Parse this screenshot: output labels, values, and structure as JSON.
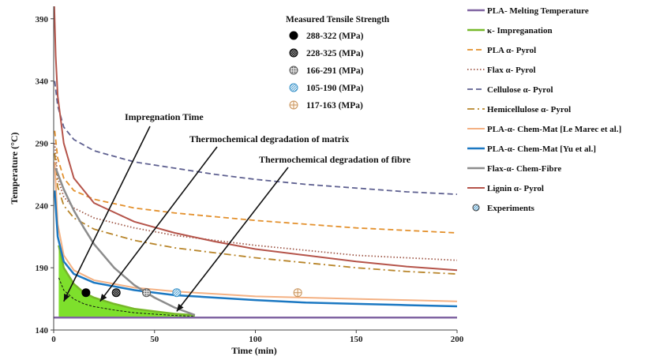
{
  "chart_data": {
    "type": "line",
    "xlabel": "Time (min)",
    "ylabel": "Temperature (°C)",
    "xlim": [
      0,
      200
    ],
    "ylim": [
      140,
      400
    ],
    "x_ticks": [
      0,
      50,
      100,
      150,
      200
    ],
    "y_ticks": [
      140,
      190,
      240,
      290,
      340,
      390
    ],
    "grid": false,
    "legend_position": "right",
    "series": [
      {
        "name": "PLA- Melting Temperature",
        "color": "#8064a2",
        "style": "solid",
        "width": 2.5,
        "points": [
          [
            0,
            150
          ],
          [
            200,
            150
          ]
        ]
      },
      {
        "name": "κ- Impreganation",
        "color": "#77b82a",
        "style": "solid",
        "width": 2.5,
        "points": [
          [
            2.5,
            208
          ],
          [
            5,
            190
          ],
          [
            10,
            177
          ],
          [
            15,
            170
          ],
          [
            20,
            166
          ],
          [
            30,
            161
          ],
          [
            40,
            157
          ],
          [
            50,
            155
          ],
          [
            60,
            153
          ],
          [
            70,
            152
          ]
        ]
      },
      {
        "name": "PLA α- Pyrol",
        "color": "#e3902c",
        "style": "dashed",
        "width": 1.8,
        "points": [
          [
            0.5,
            300
          ],
          [
            2,
            278
          ],
          [
            5,
            262
          ],
          [
            10,
            252
          ],
          [
            20,
            245
          ],
          [
            40,
            238
          ],
          [
            60,
            234
          ],
          [
            80,
            231
          ],
          [
            100,
            228
          ],
          [
            125,
            225
          ],
          [
            150,
            222
          ],
          [
            175,
            220
          ],
          [
            200,
            218
          ]
        ]
      },
      {
        "name": "Flax α- Pyrol",
        "color": "#a05a4a",
        "style": "dotted",
        "width": 1.8,
        "points": [
          [
            0.5,
            290
          ],
          [
            2,
            262
          ],
          [
            5,
            247
          ],
          [
            10,
            238
          ],
          [
            20,
            230
          ],
          [
            40,
            222
          ],
          [
            60,
            216
          ],
          [
            80,
            212
          ],
          [
            100,
            208
          ],
          [
            125,
            204
          ],
          [
            150,
            200
          ],
          [
            175,
            198
          ],
          [
            200,
            196
          ]
        ]
      },
      {
        "name": "Cellulose α- Pyrol",
        "color": "#5e6090",
        "style": "dashed",
        "width": 1.8,
        "points": [
          [
            0.5,
            340
          ],
          [
            2,
            320
          ],
          [
            5,
            303
          ],
          [
            10,
            293
          ],
          [
            20,
            284
          ],
          [
            40,
            275
          ],
          [
            60,
            270
          ],
          [
            80,
            265
          ],
          [
            100,
            261
          ],
          [
            125,
            257
          ],
          [
            150,
            254
          ],
          [
            175,
            251
          ],
          [
            200,
            249
          ]
        ]
      },
      {
        "name": "Hemicellulose α- Pyrol",
        "color": "#b8852a",
        "style": "dashdot",
        "width": 1.8,
        "points": [
          [
            0.5,
            282
          ],
          [
            2,
            255
          ],
          [
            5,
            240
          ],
          [
            10,
            230
          ],
          [
            20,
            221
          ],
          [
            40,
            212
          ],
          [
            60,
            206
          ],
          [
            80,
            202
          ],
          [
            100,
            198
          ],
          [
            125,
            194
          ],
          [
            150,
            190
          ],
          [
            175,
            187
          ],
          [
            200,
            185
          ]
        ]
      },
      {
        "name": "PLA-α- Chem-Mat [Le Marec et al.]",
        "color": "#f4b183",
        "style": "solid",
        "width": 2,
        "points": [
          [
            0.5,
            275
          ],
          [
            2,
            225
          ],
          [
            5,
            200
          ],
          [
            10,
            188
          ],
          [
            20,
            180
          ],
          [
            40,
            174
          ],
          [
            60,
            171
          ],
          [
            80,
            169
          ],
          [
            100,
            167
          ],
          [
            125,
            166
          ],
          [
            150,
            165
          ],
          [
            175,
            164
          ],
          [
            200,
            163
          ]
        ]
      },
      {
        "name": "PLA-α- Chem-Mat [Yu et al.]",
        "color": "#1b78c2",
        "style": "solid",
        "width": 2.5,
        "points": [
          [
            0.5,
            252
          ],
          [
            2,
            215
          ],
          [
            5,
            195
          ],
          [
            10,
            185
          ],
          [
            20,
            178
          ],
          [
            40,
            172
          ],
          [
            60,
            168
          ],
          [
            80,
            166
          ],
          [
            100,
            164
          ],
          [
            125,
            162
          ],
          [
            150,
            161
          ],
          [
            175,
            160
          ],
          [
            200,
            159
          ]
        ]
      },
      {
        "name": "Flax-α- Chem-Fibre",
        "color": "#8c8c8c",
        "style": "solid",
        "width": 2.5,
        "points": [
          [
            1,
            270
          ],
          [
            5,
            253
          ],
          [
            10,
            236
          ],
          [
            15,
            222
          ],
          [
            20,
            209
          ],
          [
            30,
            190
          ],
          [
            40,
            176
          ],
          [
            50,
            166
          ],
          [
            60,
            158
          ],
          [
            70,
            152
          ]
        ]
      },
      {
        "name": "Lignin α- Pyrol",
        "color": "#b5544a",
        "style": "solid",
        "width": 2,
        "points": [
          [
            0.3,
            400
          ],
          [
            1,
            360
          ],
          [
            2,
            328
          ],
          [
            5,
            290
          ],
          [
            10,
            262
          ],
          [
            20,
            242
          ],
          [
            40,
            227
          ],
          [
            60,
            218
          ],
          [
            80,
            211
          ],
          [
            100,
            205
          ],
          [
            125,
            200
          ],
          [
            150,
            195
          ],
          [
            175,
            191
          ],
          [
            200,
            188
          ]
        ]
      }
    ],
    "experiments": {
      "legend_label": "Experiments",
      "points": [
        {
          "x": 16,
          "y": 170,
          "range": "288-322"
        },
        {
          "x": 31,
          "y": 170,
          "range": "228-325"
        },
        {
          "x": 46,
          "y": 170,
          "range": "166-291"
        },
        {
          "x": 61,
          "y": 170,
          "range": "105-190"
        },
        {
          "x": 121,
          "y": 170,
          "range": "117-163"
        }
      ]
    },
    "measured_legend": {
      "title": "Measured  Tensile Strength",
      "items": [
        {
          "label": "288-322  (MPa)",
          "style": "solid-black"
        },
        {
          "label": "228-325  (MPa)",
          "style": "cross-black"
        },
        {
          "label": "166-291  (MPa)",
          "style": "gray-dots"
        },
        {
          "label": "105-190  (MPa)",
          "style": "blue-hatch"
        },
        {
          "label": "117-163  (MPa)",
          "style": "plus-tan"
        }
      ]
    },
    "annotations": [
      {
        "text": "Impregnation Time",
        "target": [
          5,
          163
        ]
      },
      {
        "text": "Thermochemical degradation of matrix",
        "target": [
          23,
          163
        ]
      },
      {
        "text": "Thermochemical degradation of fibre",
        "target": [
          61,
          155
        ]
      }
    ]
  }
}
